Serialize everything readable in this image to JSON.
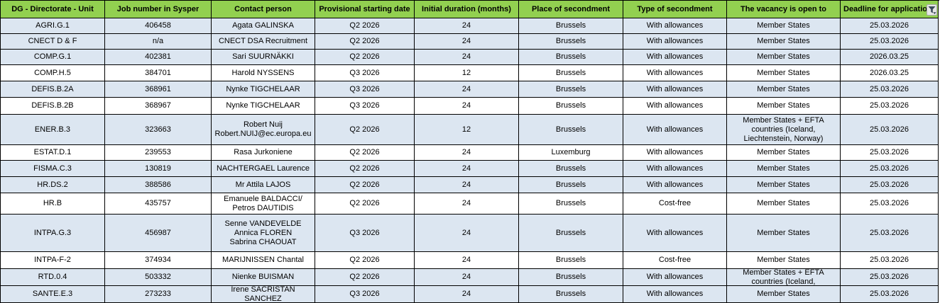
{
  "table": {
    "columns": [
      {
        "id": "dg-unit",
        "key": "unit",
        "label": "DG - Directorate - Unit"
      },
      {
        "id": "job-number",
        "key": "job",
        "label": "Job number in Sysper"
      },
      {
        "id": "contact-person",
        "key": "contact",
        "label": "Contact person"
      },
      {
        "id": "starting-date",
        "key": "start",
        "label": "Provisional starting date"
      },
      {
        "id": "duration",
        "key": "duration",
        "label": "Initial duration (months)"
      },
      {
        "id": "place",
        "key": "place",
        "label": "Place of secondment"
      },
      {
        "id": "type",
        "key": "type",
        "label": "Type of secondment"
      },
      {
        "id": "open-to",
        "key": "open_to",
        "label": "The vacancy is open to"
      },
      {
        "id": "deadline",
        "key": "deadline",
        "label": "Deadline for application",
        "has_filter": true,
        "filter_icon": "filter-icon"
      }
    ],
    "rows": [
      {
        "unit": "AGRI.G.1",
        "job": "406458",
        "contact": "Agata GALINSKA",
        "start": "Q2 2026",
        "duration": "24",
        "place": "Brussels",
        "type": "With allowances",
        "open_to": "Member States",
        "deadline": "25.03.2026",
        "shaded": true
      },
      {
        "unit": "CNECT D & F",
        "job": "n/a",
        "contact": "CNECT DSA Recruitment",
        "start": "Q2 2026",
        "duration": "24",
        "place": "Brussels",
        "type": "With allowances",
        "open_to": "Member States",
        "deadline": "25.03.2026",
        "shaded": true
      },
      {
        "unit": "COMP.G.1",
        "job": "402381",
        "contact": "Sari SUURNÄKKI",
        "start": "Q2 2026",
        "duration": "24",
        "place": "Brussels",
        "type": "With allowances",
        "open_to": "Member States",
        "deadline": "2026.03.25",
        "shaded": true
      },
      {
        "unit": "COMP.H.5",
        "job": "384701",
        "contact": "Harold NYSSENS",
        "start": "Q3 2026",
        "duration": "12",
        "place": "Brussels",
        "type": "With allowances",
        "open_to": "Member States",
        "deadline": "2026.03.25",
        "shaded": false
      },
      {
        "unit": "DEFIS.B.2A",
        "job": "368961",
        "contact": "Nynke TIGCHELAAR",
        "start": "Q3 2026",
        "duration": "24",
        "place": "Brussels",
        "type": "With allowances",
        "open_to": "Member States",
        "deadline": "25.03.2026",
        "shaded": true
      },
      {
        "unit": "DEFIS.B.2B",
        "job": "368967",
        "contact": "Nynke TIGCHELAAR",
        "start": "Q3 2026",
        "duration": "24",
        "place": "Brussels",
        "type": "With allowances",
        "open_to": "Member States",
        "deadline": "25.03.2026",
        "shaded": false
      },
      {
        "unit": "ENER.B.3",
        "job": "323663",
        "contact": "Robert Nuij\nRobert.NUIJ@ec.europa.eu",
        "start": "Q2 2026",
        "duration": "12",
        "place": "Brussels",
        "type": "With allowances",
        "open_to": "Member States + EFTA countries (Iceland, Liechtenstein, Norway)",
        "deadline": "25.03.2026",
        "shaded": true
      },
      {
        "unit": "ESTAT.D.1",
        "job": "239553",
        "contact": "Rasa Jurkoniene",
        "start": "Q2 2026",
        "duration": "24",
        "place": "Luxemburg",
        "type": "With allowances",
        "open_to": "Member States",
        "deadline": "25.03.2026",
        "shaded": false
      },
      {
        "unit": "FISMA.C.3",
        "job": "130819",
        "contact": "NACHTERGAEL Laurence",
        "start": "Q2 2026",
        "duration": "24",
        "place": "Brussels",
        "type": "With allowances",
        "open_to": "Member States",
        "deadline": "25.03.2026",
        "shaded": true
      },
      {
        "unit": "HR.DS.2",
        "job": "388586",
        "contact": "Mr Attila LAJOS",
        "start": "Q2 2026",
        "duration": "24",
        "place": "Brussels",
        "type": "With allowances",
        "open_to": "Member States",
        "deadline": "25.03.2026",
        "shaded": true
      },
      {
        "unit": "HR.B",
        "job": "435757",
        "contact": "Emanuele BALDACCI/ Petros DAUTIDIS",
        "start": "Q2 2026",
        "duration": "24",
        "place": "Brussels",
        "type": "Cost-free",
        "open_to": "Member States",
        "deadline": "25.03.2026",
        "shaded": false
      },
      {
        "unit": "INTPA.G.3",
        "job": "456987",
        "contact": "Senne VANDEVELDE\nAnnica FLOREN\nSabrina CHAOUAT",
        "start": "Q3 2026",
        "duration": "24",
        "place": "Brussels",
        "type": "With allowances",
        "open_to": "Member States",
        "deadline": "25.03.2026",
        "shaded": true
      },
      {
        "unit": "INTPA-F-2",
        "job": "374934",
        "contact": "MARIJNISSEN Chantal",
        "start": "Q2 2026",
        "duration": "24",
        "place": "Brussels",
        "type": "Cost-free",
        "open_to": "Member States",
        "deadline": "25.03.2026",
        "shaded": false
      },
      {
        "unit": "RTD.0.4",
        "job": "503332",
        "contact": "Nienke BUISMAN",
        "start": "Q2 2026",
        "duration": "24",
        "place": "Brussels",
        "type": "With allowances",
        "open_to": "Member States + EFTA countries (Iceland,",
        "deadline": "25.03.2026",
        "shaded": true
      },
      {
        "unit": "SANTE.E.3",
        "job": "273233",
        "contact": "Irene SACRISTAN SANCHEZ",
        "start": "Q3 2026",
        "duration": "24",
        "place": "Brussels",
        "type": "With allowances",
        "open_to": "Member States",
        "deadline": "25.03.2026",
        "shaded": true
      }
    ]
  },
  "colors": {
    "header_green": "#92D050",
    "row_shaded_blue": "#DCE6F1",
    "row_plain_white": "#FFFFFF",
    "grid_border": "#000000",
    "text": "#000000",
    "filter_button_bg": "#E6E6E6",
    "filter_button_border": "#ABABAB",
    "filter_glyph": "#3B4A5A"
  }
}
